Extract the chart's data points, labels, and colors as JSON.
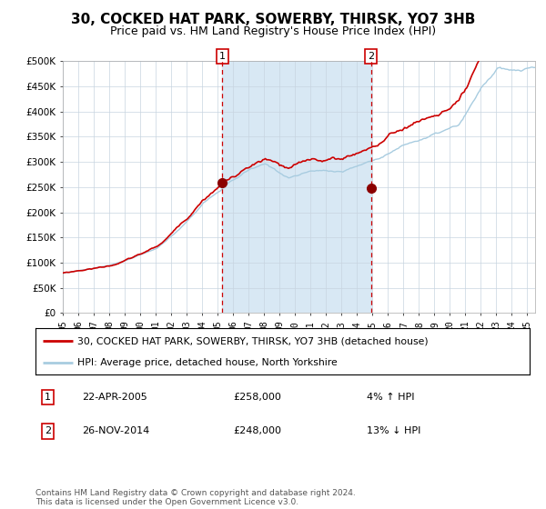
{
  "title": "30, COCKED HAT PARK, SOWERBY, THIRSK, YO7 3HB",
  "subtitle": "Price paid vs. HM Land Registry's House Price Index (HPI)",
  "legend_line1": "30, COCKED HAT PARK, SOWERBY, THIRSK, YO7 3HB (detached house)",
  "legend_line2": "HPI: Average price, detached house, North Yorkshire",
  "annotation1_date": "22-APR-2005",
  "annotation1_price": "£258,000",
  "annotation1_hpi": "4% ↑ HPI",
  "annotation2_date": "26-NOV-2014",
  "annotation2_price": "£248,000",
  "annotation2_hpi": "13% ↓ HPI",
  "footer": "Contains HM Land Registry data © Crown copyright and database right 2024.\nThis data is licensed under the Open Government Licence v3.0.",
  "sale1_x": 2005.31,
  "sale1_y": 258000,
  "sale2_x": 2014.9,
  "sale2_y": 248000,
  "vline1_x": 2005.31,
  "vline2_x": 2014.9,
  "shade_x1": 2005.31,
  "shade_x2": 2014.9,
  "ylim": [
    0,
    500000
  ],
  "xlim": [
    1995,
    2025.5
  ],
  "hpi_color": "#a8cce0",
  "price_color": "#cc0000",
  "dot_color": "#8b0000",
  "shade_color": "#d8e8f4",
  "plot_bg_color": "#ffffff",
  "grid_color": "#c8d4e0",
  "vline_color": "#cc0000",
  "title_fontsize": 11,
  "subtitle_fontsize": 9
}
